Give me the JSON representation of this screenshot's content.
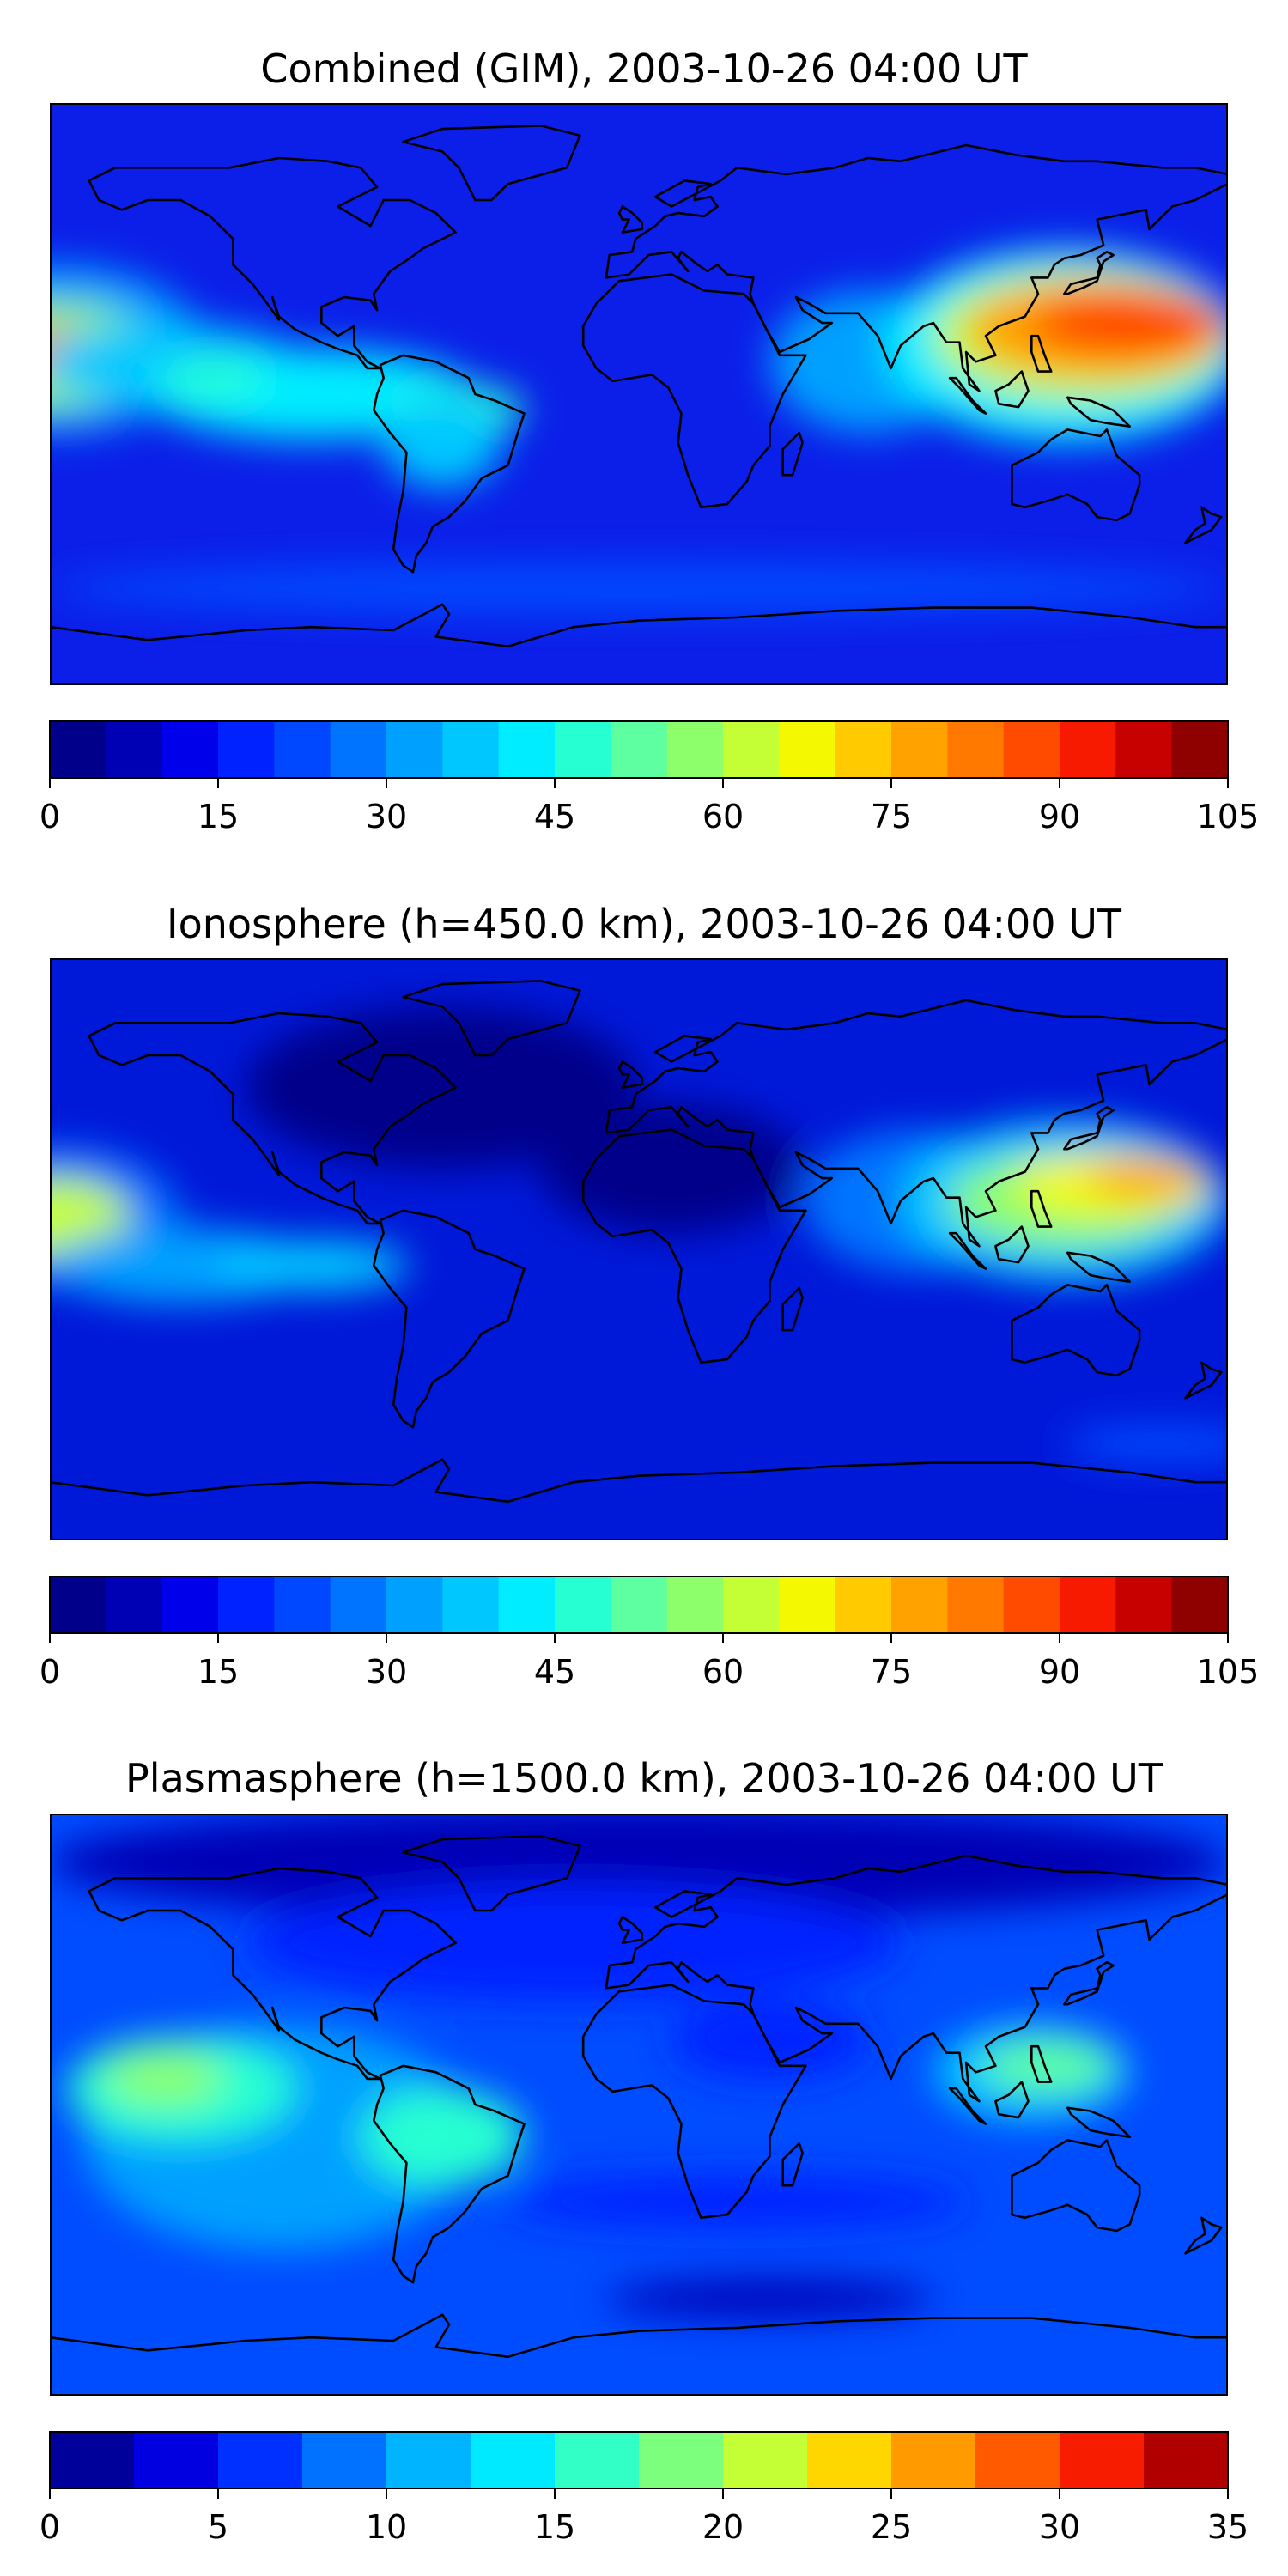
{
  "panels": [
    {
      "title": "Combined (GIM), 2003-10-26 04:00 UT",
      "colorbar": {
        "min": 0,
        "max": 105,
        "step": 5,
        "ticks": [
          "0",
          "15",
          "30",
          "45",
          "60",
          "75",
          "90",
          "105"
        ],
        "colors": [
          "#00008a",
          "#0000b5",
          "#0000ea",
          "#0022ff",
          "#0048ff",
          "#0074ff",
          "#00a0ff",
          "#00c8ff",
          "#00ecff",
          "#25ffd2",
          "#5dffa0",
          "#8cff6b",
          "#c4ff36",
          "#f4f902",
          "#ffcb00",
          "#ffa200",
          "#ff7800",
          "#ff4b00",
          "#f71a00",
          "#c70000",
          "#8f0000"
        ]
      },
      "map": {
        "background": "#0b1fe8",
        "blobs": [
          {
            "lon": -178,
            "lat": 14,
            "rx": 45,
            "ry": 26,
            "color": "#00a0ff"
          },
          {
            "lon": -178,
            "lat": 12,
            "rx": 32,
            "ry": 16,
            "color": "#8cff6b"
          },
          {
            "lon": -176,
            "lat": 12,
            "rx": 20,
            "ry": 9,
            "color": "#ff7800"
          },
          {
            "lon": -145,
            "lat": 10,
            "rx": 40,
            "ry": 12,
            "color": "#00c8ff"
          },
          {
            "lon": -100,
            "lat": 0,
            "rx": 50,
            "ry": 14,
            "color": "#00ecff"
          },
          {
            "lon": -130,
            "lat": 5,
            "rx": 16,
            "ry": 6,
            "color": "#25ffd2"
          },
          {
            "lon": -55,
            "lat": -5,
            "rx": 20,
            "ry": 8,
            "color": "#25ffd2"
          },
          {
            "lon": -60,
            "lat": -15,
            "rx": 18,
            "ry": 14,
            "color": "#00c8ff"
          },
          {
            "lon": 70,
            "lat": 10,
            "rx": 30,
            "ry": 22,
            "color": "#00a0ff"
          },
          {
            "lon": 130,
            "lat": 15,
            "rx": 55,
            "ry": 30,
            "color": "#00ecff"
          },
          {
            "lon": 135,
            "lat": 18,
            "rx": 45,
            "ry": 20,
            "color": "#c4ff36"
          },
          {
            "lon": 140,
            "lat": 20,
            "rx": 40,
            "ry": 15,
            "color": "#ffa200"
          },
          {
            "lon": 150,
            "lat": 22,
            "rx": 30,
            "ry": 10,
            "color": "#ff4b00"
          },
          {
            "lon": 0,
            "lat": -60,
            "rx": 180,
            "ry": 8,
            "color": "#0048ff"
          }
        ]
      }
    },
    {
      "title": "Ionosphere  (h=450.0 km), 2003-10-26 04:00 UT",
      "colorbar": {
        "min": 0,
        "max": 105,
        "step": 5,
        "ticks": [
          "0",
          "15",
          "30",
          "45",
          "60",
          "75",
          "90",
          "105"
        ],
        "colors": [
          "#00008a",
          "#0000b5",
          "#0000ea",
          "#0022ff",
          "#0048ff",
          "#0074ff",
          "#00a0ff",
          "#00c8ff",
          "#00ecff",
          "#25ffd2",
          "#5dffa0",
          "#8cff6b",
          "#c4ff36",
          "#f4f902",
          "#ffcb00",
          "#ffa200",
          "#ff7800",
          "#ff4b00",
          "#f71a00",
          "#c70000",
          "#8f0000"
        ]
      },
      "map": {
        "background": "#0018d8",
        "blobs": [
          {
            "lon": -60,
            "lat": 50,
            "rx": 60,
            "ry": 25,
            "color": "#00008a"
          },
          {
            "lon": 10,
            "lat": 25,
            "rx": 40,
            "ry": 20,
            "color": "#00008a"
          },
          {
            "lon": -178,
            "lat": 10,
            "rx": 38,
            "ry": 22,
            "color": "#0074ff"
          },
          {
            "lon": -178,
            "lat": 10,
            "rx": 22,
            "ry": 12,
            "color": "#c4ff36"
          },
          {
            "lon": -140,
            "lat": -5,
            "rx": 40,
            "ry": 12,
            "color": "#00a0ff"
          },
          {
            "lon": -100,
            "lat": -5,
            "rx": 30,
            "ry": 8,
            "color": "#00c8ff"
          },
          {
            "lon": 85,
            "lat": 15,
            "rx": 35,
            "ry": 22,
            "color": "#0074ff"
          },
          {
            "lon": 130,
            "lat": 15,
            "rx": 50,
            "ry": 25,
            "color": "#00c8ff"
          },
          {
            "lon": 130,
            "lat": 15,
            "rx": 35,
            "ry": 14,
            "color": "#8cff6b"
          },
          {
            "lon": 145,
            "lat": 20,
            "rx": 30,
            "ry": 10,
            "color": "#f4f902"
          },
          {
            "lon": 155,
            "lat": 22,
            "rx": 18,
            "ry": 6,
            "color": "#ffa200"
          },
          {
            "lon": 160,
            "lat": -60,
            "rx": 30,
            "ry": 6,
            "color": "#0048ff"
          }
        ]
      }
    },
    {
      "title": "Plasmasphere (h=1500.0 km), 2003-10-26 04:00 UT",
      "colorbar": {
        "min": 0,
        "max": 35,
        "step": 2.5,
        "ticks": [
          "0",
          "5",
          "10",
          "15",
          "20",
          "25",
          "30",
          "35"
        ],
        "colors": [
          "#00009a",
          "#0000e0",
          "#0030ff",
          "#0072ff",
          "#00b4ff",
          "#00eaff",
          "#31ffc6",
          "#7cff7c",
          "#c4ff36",
          "#ffd700",
          "#ff9a00",
          "#ff5a00",
          "#f71c00",
          "#b00000"
        ]
      },
      "map": {
        "background": "#004cff",
        "blobs": [
          {
            "lon": 0,
            "lat": 75,
            "rx": 180,
            "ry": 18,
            "color": "#0000b5"
          },
          {
            "lon": -20,
            "lat": 50,
            "rx": 100,
            "ry": 18,
            "color": "#0022ff"
          },
          {
            "lon": -110,
            "lat": -10,
            "rx": 60,
            "ry": 35,
            "color": "#00a0ff"
          },
          {
            "lon": -140,
            "lat": 5,
            "rx": 35,
            "ry": 16,
            "color": "#25ffd2"
          },
          {
            "lon": -145,
            "lat": 8,
            "rx": 18,
            "ry": 8,
            "color": "#8cff6b"
          },
          {
            "lon": -60,
            "lat": -10,
            "rx": 25,
            "ry": 15,
            "color": "#25ffd2"
          },
          {
            "lon": 120,
            "lat": 10,
            "rx": 30,
            "ry": 15,
            "color": "#00c8ff"
          },
          {
            "lon": 125,
            "lat": 12,
            "rx": 20,
            "ry": 8,
            "color": "#5dffa0"
          },
          {
            "lon": 40,
            "lat": 20,
            "rx": 30,
            "ry": 12,
            "color": "#0022ff"
          },
          {
            "lon": 30,
            "lat": -30,
            "rx": 70,
            "ry": 8,
            "color": "#0022ff"
          },
          {
            "lon": 40,
            "lat": -60,
            "rx": 50,
            "ry": 6,
            "color": "#0000b5"
          }
        ]
      }
    }
  ]
}
